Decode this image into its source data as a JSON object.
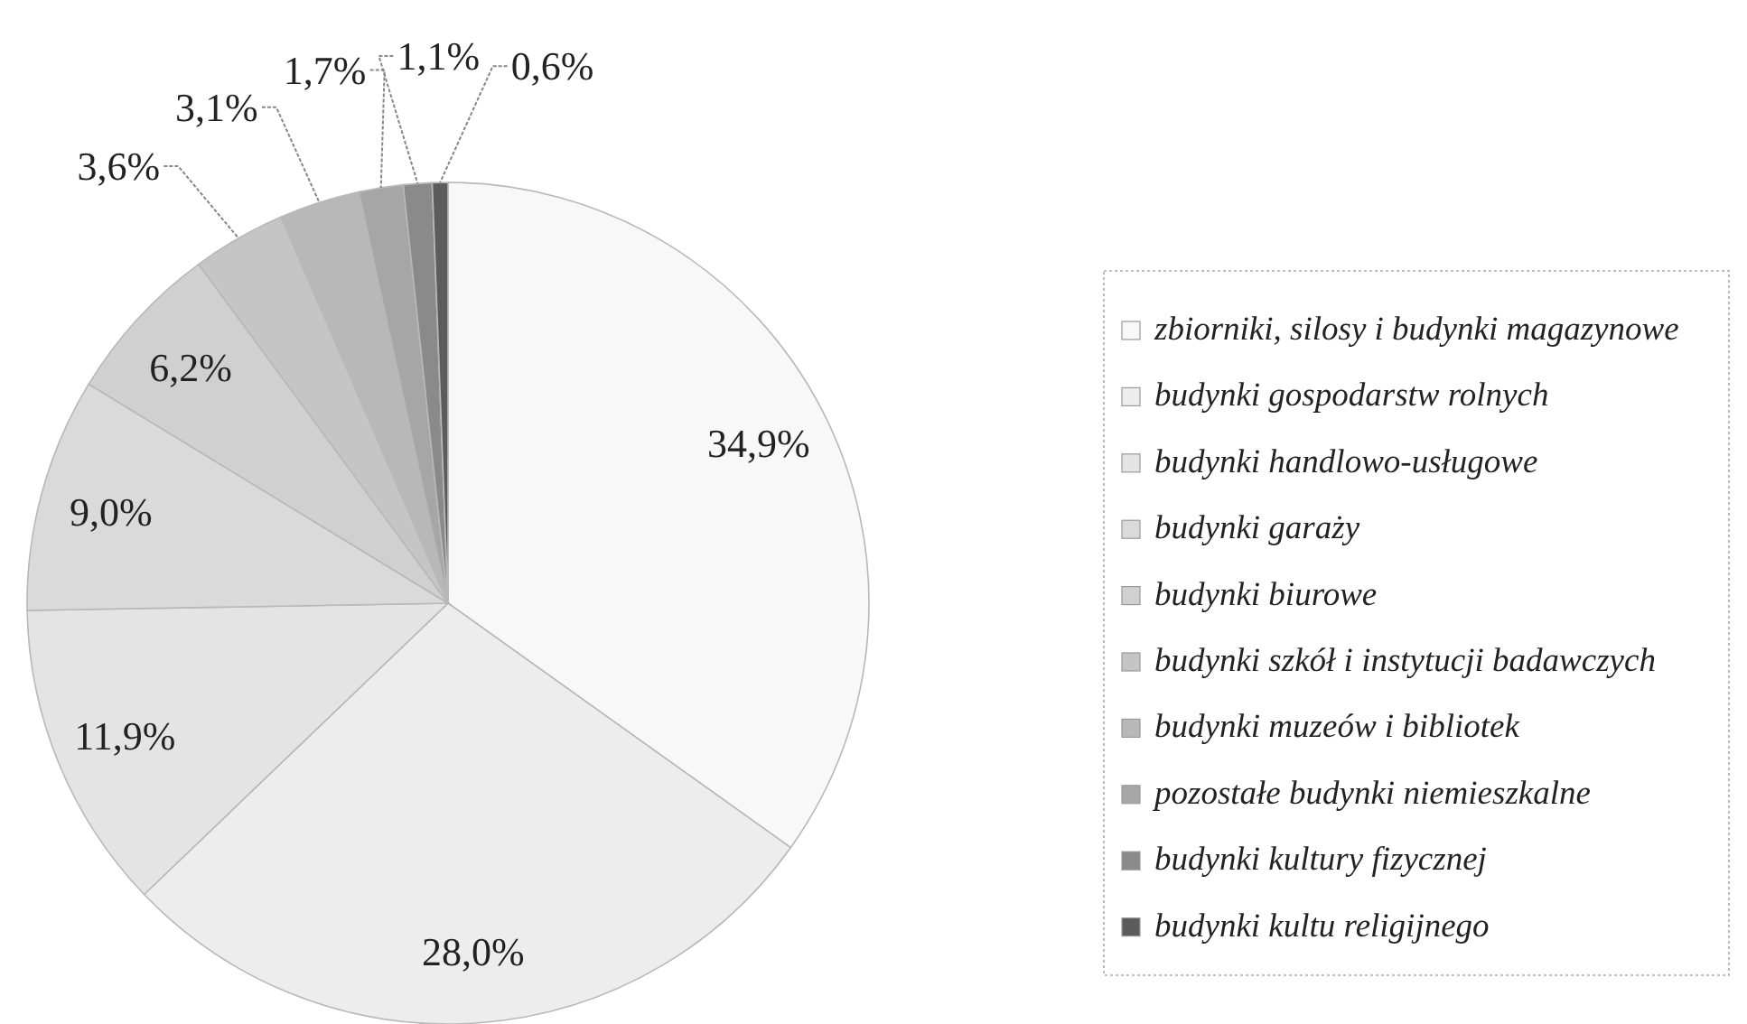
{
  "chart_data": {
    "type": "pie",
    "categories": [
      "zbiorniki, silosy i budynki magazynowe",
      "budynki gospodarstw rolnych",
      "budynki handlowo-usługowe",
      "budynki garaży",
      "budynki biurowe",
      "budynki szkół i instytucji badawczych",
      "budynki muzeów i bibliotek",
      "pozostałe budynki niemieszkalne",
      "budynki kultury fizycznej",
      "budynki kultu religijnego"
    ],
    "values": [
      34.9,
      28.0,
      11.9,
      9.0,
      6.2,
      3.6,
      3.1,
      1.7,
      1.1,
      0.6
    ],
    "value_labels": [
      "34,9%",
      "28,0%",
      "11,9%",
      "9,0%",
      "6,2%",
      "3,6%",
      "3,1%",
      "1,7%",
      "1,1%",
      "0,6%"
    ],
    "colors": [
      "#f8f8f8",
      "#ededed",
      "#e4e4e4",
      "#dadada",
      "#d0d0d0",
      "#c5c5c5",
      "#b8b8b8",
      "#a6a6a6",
      "#8a8a8a",
      "#5c5c5c"
    ],
    "legend": "right"
  }
}
